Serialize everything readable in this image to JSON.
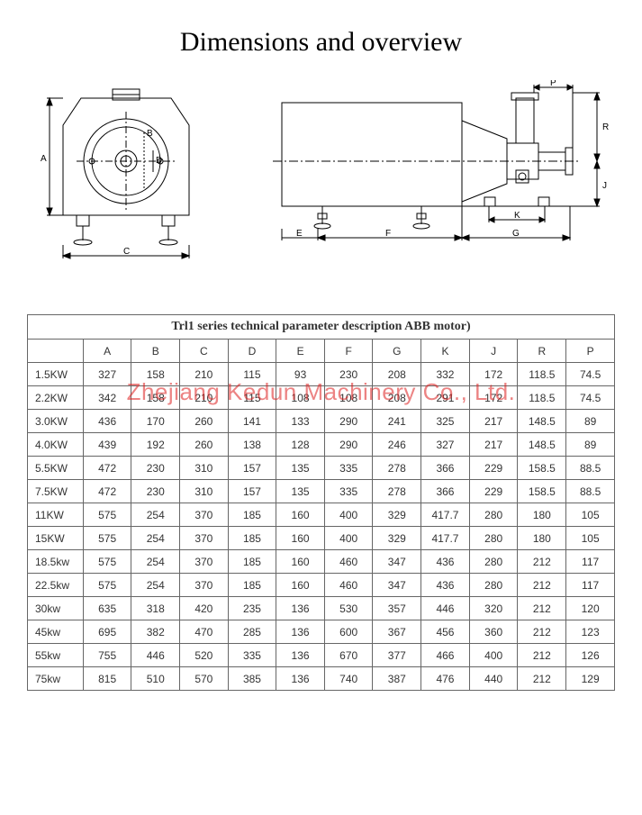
{
  "title": "Dimensions and overview",
  "watermark": "Zhejiang Kedun Machinery Co., Ltd.",
  "table": {
    "caption": "Trl1 series technical parameter description ABB motor)",
    "columns": [
      "",
      "A",
      "B",
      "C",
      "D",
      "E",
      "F",
      "G",
      "K",
      "J",
      "R",
      "P"
    ],
    "rows": [
      [
        "1.5KW",
        "327",
        "158",
        "210",
        "115",
        "93",
        "230",
        "208",
        "332",
        "172",
        "118.5",
        "74.5"
      ],
      [
        "2.2KW",
        "342",
        "158",
        "210",
        "115",
        "108",
        "108",
        "208",
        "291",
        "172",
        "118.5",
        "74.5"
      ],
      [
        "3.0KW",
        "436",
        "170",
        "260",
        "141",
        "133",
        "290",
        "241",
        "325",
        "217",
        "148.5",
        "89"
      ],
      [
        "4.0KW",
        "439",
        "192",
        "260",
        "138",
        "128",
        "290",
        "246",
        "327",
        "217",
        "148.5",
        "89"
      ],
      [
        "5.5KW",
        "472",
        "230",
        "310",
        "157",
        "135",
        "335",
        "278",
        "366",
        "229",
        "158.5",
        "88.5"
      ],
      [
        "7.5KW",
        "472",
        "230",
        "310",
        "157",
        "135",
        "335",
        "278",
        "366",
        "229",
        "158.5",
        "88.5"
      ],
      [
        "11KW",
        "575",
        "254",
        "370",
        "185",
        "160",
        "400",
        "329",
        "417.7",
        "280",
        "180",
        "105"
      ],
      [
        "15KW",
        "575",
        "254",
        "370",
        "185",
        "160",
        "400",
        "329",
        "417.7",
        "280",
        "180",
        "105"
      ],
      [
        "18.5kw",
        "575",
        "254",
        "370",
        "185",
        "160",
        "460",
        "347",
        "436",
        "280",
        "212",
        "117"
      ],
      [
        "22.5kw",
        "575",
        "254",
        "370",
        "185",
        "160",
        "460",
        "347",
        "436",
        "280",
        "212",
        "117"
      ],
      [
        "30kw",
        "635",
        "318",
        "420",
        "235",
        "136",
        "530",
        "357",
        "446",
        "320",
        "212",
        "120"
      ],
      [
        "45kw",
        "695",
        "382",
        "470",
        "285",
        "136",
        "600",
        "367",
        "456",
        "360",
        "212",
        "123"
      ],
      [
        "55kw",
        "755",
        "446",
        "520",
        "335",
        "136",
        "670",
        "377",
        "466",
        "400",
        "212",
        "126"
      ],
      [
        "75kw",
        "815",
        "510",
        "570",
        "385",
        "136",
        "740",
        "387",
        "476",
        "440",
        "212",
        "129"
      ]
    ]
  },
  "diagram_labels": {
    "left": {
      "A": "A",
      "B": "B",
      "C": "C",
      "D": "D"
    },
    "right": {
      "E": "E",
      "F": "F",
      "G": "G",
      "J": "J",
      "K": "K",
      "P": "P",
      "R": "R"
    }
  },
  "colors": {
    "stroke": "#000000",
    "stroke_light": "#333333",
    "fill": "#ffffff",
    "text": "#000000",
    "table_border": "#666666",
    "watermark": "rgba(220,30,30,0.55)"
  }
}
